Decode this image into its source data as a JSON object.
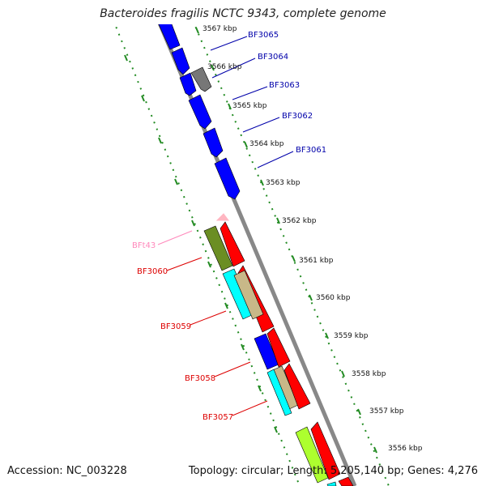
{
  "title": "Bacteroides fragilis NCTC 9343, complete genome",
  "footer": {
    "accession": "Accession: NC_003228",
    "summary": "Topology: circular; Length: 5,205,140 bp; Genes: 4,276"
  },
  "colors": {
    "forward_track": "#0000ff",
    "reverse_track": "#ff0000",
    "gray_gene": "#777777",
    "olive_gene": "#6b8e23",
    "cyan_gene": "#00ffff",
    "tan_gene": "#c8b888",
    "lime_gene": "#adff2f",
    "pink_gene": "#ffb6c1",
    "ruler": "#228b22",
    "backbone": "#888888"
  },
  "ruler_labels": [
    "3567 kbp",
    "3566 kbp",
    "3565 kbp",
    "3564 kbp",
    "3563 kbp",
    "3562 kbp",
    "3561 kbp",
    "3560 kbp",
    "3559 kbp",
    "3558 kbp",
    "3557 kbp",
    "3556 kbp"
  ],
  "gene_labels": [
    {
      "name": "BF3065",
      "color": "#0000aa",
      "side": "right"
    },
    {
      "name": "BF3064",
      "color": "#0000aa",
      "side": "right"
    },
    {
      "name": "BF3063",
      "color": "#0000aa",
      "side": "right"
    },
    {
      "name": "BF3062",
      "color": "#0000aa",
      "side": "right"
    },
    {
      "name": "BF3061",
      "color": "#0000aa",
      "side": "right"
    },
    {
      "name": "BFt43",
      "color": "#ff88bb",
      "side": "left"
    },
    {
      "name": "BF3060",
      "color": "#dd0000",
      "side": "left"
    },
    {
      "name": "BF3059",
      "color": "#dd0000",
      "side": "left"
    },
    {
      "name": "BF3058",
      "color": "#dd0000",
      "side": "left"
    },
    {
      "name": "BF3057",
      "color": "#dd0000",
      "side": "left"
    }
  ]
}
